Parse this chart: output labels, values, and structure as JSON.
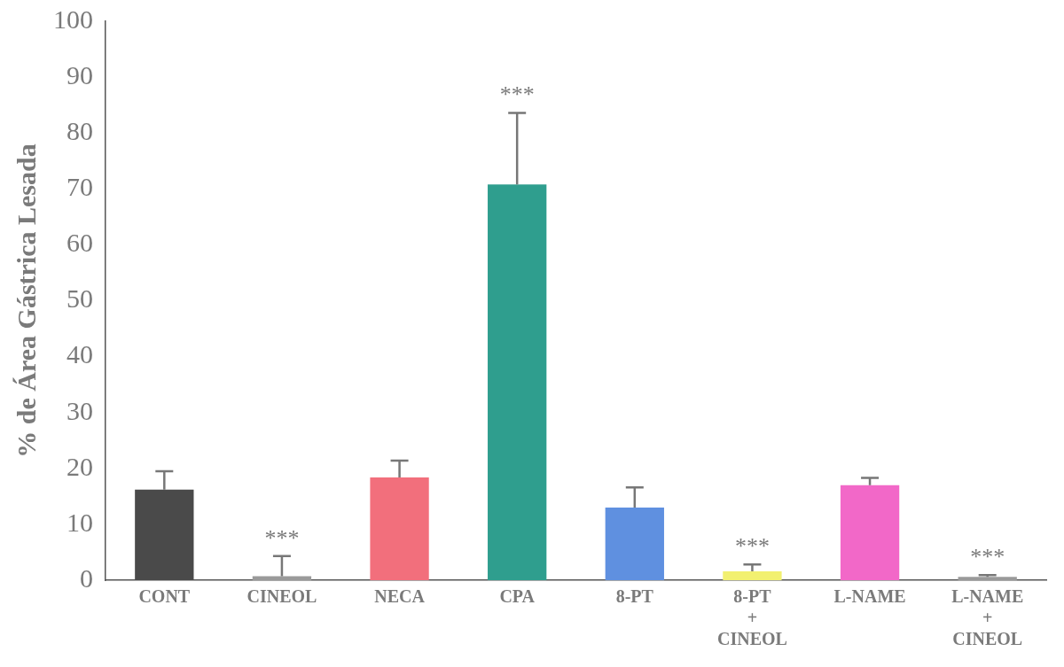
{
  "chart_data": {
    "type": "bar",
    "ylabel": "% de Área Gástrica Lesada",
    "categories": [
      "CONT",
      "CINEOL",
      "NECA",
      "CPA",
      "8-PT",
      "8-PT\n+\nCINEOL",
      "L-NAME",
      "L-NAME\n+\nCINEOL"
    ],
    "values": [
      16.2,
      0.7,
      18.4,
      70.8,
      13,
      1.6,
      17,
      0.6
    ],
    "colors": [
      "#4a4a4a",
      "#9a9a9a",
      "#f26f7c",
      "#2f9e8e",
      "#5f90e0",
      "#f2f070",
      "#f268c8",
      "#9a9a9a"
    ],
    "errors": [
      [
        16.2,
        19.5
      ],
      [
        0.7,
        4.3
      ],
      [
        18.4,
        21.4
      ],
      [
        70.8,
        83.6
      ],
      [
        13,
        16.6
      ],
      [
        1.6,
        2.8
      ],
      [
        17,
        18.3
      ],
      [
        0.6,
        0.9
      ]
    ],
    "annotations": [
      {
        "text": "***",
        "x": "CINEOL",
        "y": 4.3
      },
      {
        "text": "***",
        "x": "CPA",
        "y": 83.6
      },
      {
        "text": "***",
        "x": "8-PT\n+\nCINEOL",
        "y": 2.8
      },
      {
        "text": "***",
        "x": "L-NAME\n+\nCINEOL",
        "y": 0.9
      }
    ],
    "ylim": [
      0,
      100
    ],
    "yticks": [
      0,
      10,
      20,
      30,
      40,
      50,
      60,
      70,
      80,
      90,
      100
    ],
    "grid": false,
    "legend": false
  }
}
